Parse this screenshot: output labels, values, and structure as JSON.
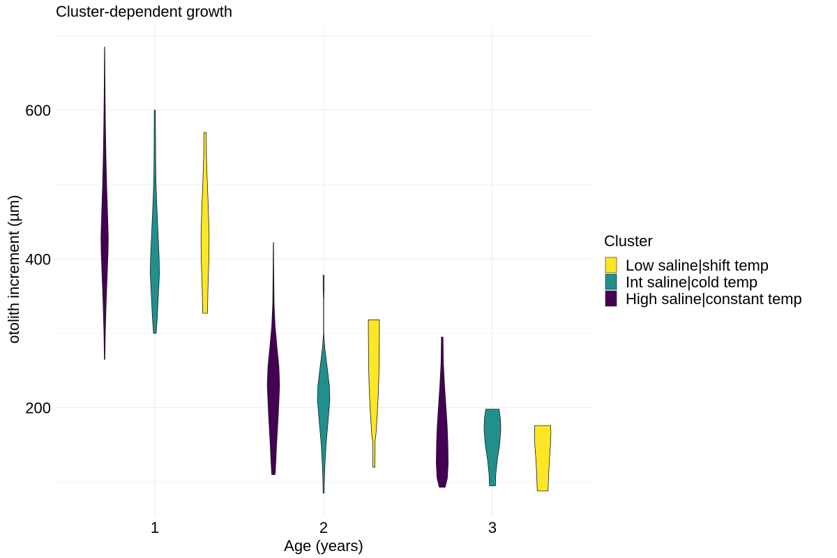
{
  "chart_data": {
    "type": "violin",
    "title": "Cluster-dependent growth",
    "xlabel": "Age (years)",
    "ylabel": "otolith increment (µm)",
    "categories": [
      "1",
      "2",
      "3"
    ],
    "ylim": [
      65,
      700
    ],
    "yticks": [
      200,
      400,
      600
    ],
    "grid": true,
    "legend": {
      "title": "Cluster",
      "position": "right",
      "entries": [
        {
          "label": "Low saline|shift temp",
          "color": "#FDE725"
        },
        {
          "label": "Int saline|cold temp",
          "color": "#21908C"
        },
        {
          "label": "High saline|constant temp",
          "color": "#440154"
        }
      ]
    },
    "series": [
      {
        "name": "High saline|constant temp",
        "color": "#440154",
        "violins": [
          {
            "category": "1",
            "min": 265,
            "max": 685,
            "profile": [
              [
                265,
                0.03
              ],
              [
                300,
                0.08
              ],
              [
                340,
                0.18
              ],
              [
                380,
                0.32
              ],
              [
                410,
                0.42
              ],
              [
                430,
                0.44
              ],
              [
                460,
                0.36
              ],
              [
                500,
                0.24
              ],
              [
                540,
                0.16
              ],
              [
                580,
                0.1
              ],
              [
                620,
                0.06
              ],
              [
                660,
                0.03
              ],
              [
                685,
                0.02
              ]
            ]
          },
          {
            "category": "2",
            "min": 110,
            "max": 422,
            "profile": [
              [
                110,
                0.2
              ],
              [
                125,
                0.28
              ],
              [
                150,
                0.38
              ],
              [
                190,
                0.58
              ],
              [
                230,
                0.74
              ],
              [
                255,
                0.66
              ],
              [
                280,
                0.44
              ],
              [
                310,
                0.2
              ],
              [
                340,
                0.08
              ],
              [
                380,
                0.04
              ],
              [
                422,
                0.02
              ]
            ]
          },
          {
            "category": "3",
            "min": 93,
            "max": 295,
            "profile": [
              [
                93,
                0.35
              ],
              [
                105,
                0.62
              ],
              [
                125,
                0.72
              ],
              [
                150,
                0.68
              ],
              [
                175,
                0.6
              ],
              [
                200,
                0.46
              ],
              [
                230,
                0.28
              ],
              [
                260,
                0.14
              ],
              [
                295,
                0.1
              ]
            ]
          }
        ]
      },
      {
        "name": "Int saline|cold temp",
        "color": "#21908C",
        "violins": [
          {
            "category": "1",
            "min": 300,
            "max": 600,
            "profile": [
              [
                300,
                0.16
              ],
              [
                320,
                0.28
              ],
              [
                350,
                0.42
              ],
              [
                380,
                0.55
              ],
              [
                400,
                0.52
              ],
              [
                430,
                0.4
              ],
              [
                470,
                0.24
              ],
              [
                500,
                0.14
              ],
              [
                530,
                0.1
              ],
              [
                560,
                0.08
              ],
              [
                600,
                0.07
              ]
            ]
          },
          {
            "category": "2",
            "min": 85,
            "max": 378,
            "profile": [
              [
                85,
                0.06
              ],
              [
                100,
                0.08
              ],
              [
                120,
                0.14
              ],
              [
                150,
                0.28
              ],
              [
                180,
                0.52
              ],
              [
                210,
                0.74
              ],
              [
                230,
                0.68
              ],
              [
                255,
                0.42
              ],
              [
                280,
                0.14
              ],
              [
                300,
                0.02
              ],
              [
                320,
                0.02
              ],
              [
                345,
                0.02
              ],
              [
                360,
                0.06
              ],
              [
                378,
                0.06
              ]
            ]
          },
          {
            "category": "3",
            "min": 95,
            "max": 198,
            "profile": [
              [
                95,
                0.36
              ],
              [
                110,
                0.4
              ],
              [
                130,
                0.58
              ],
              [
                150,
                0.86
              ],
              [
                170,
                1.0
              ],
              [
                185,
                0.96
              ],
              [
                198,
                0.8
              ]
            ]
          }
        ]
      },
      {
        "name": "Low saline|shift temp",
        "color": "#FDE725",
        "violins": [
          {
            "category": "1",
            "min": 327,
            "max": 570,
            "profile": [
              [
                327,
                0.28
              ],
              [
                360,
                0.34
              ],
              [
                400,
                0.46
              ],
              [
                430,
                0.48
              ],
              [
                470,
                0.38
              ],
              [
                510,
                0.24
              ],
              [
                540,
                0.16
              ],
              [
                570,
                0.14
              ]
            ]
          },
          {
            "category": "2",
            "min": 120,
            "max": 318,
            "profile": [
              [
                120,
                0.12
              ],
              [
                140,
                0.14
              ],
              [
                155,
                0.14
              ],
              [
                165,
                0.26
              ],
              [
                190,
                0.4
              ],
              [
                220,
                0.54
              ],
              [
                250,
                0.62
              ],
              [
                280,
                0.64
              ],
              [
                300,
                0.66
              ],
              [
                318,
                0.66
              ]
            ]
          },
          {
            "category": "3",
            "min": 88,
            "max": 176,
            "profile": [
              [
                88,
                0.64
              ],
              [
                110,
                0.72
              ],
              [
                130,
                0.8
              ],
              [
                150,
                0.94
              ],
              [
                165,
                0.98
              ],
              [
                176,
                0.96
              ]
            ]
          }
        ]
      }
    ]
  }
}
